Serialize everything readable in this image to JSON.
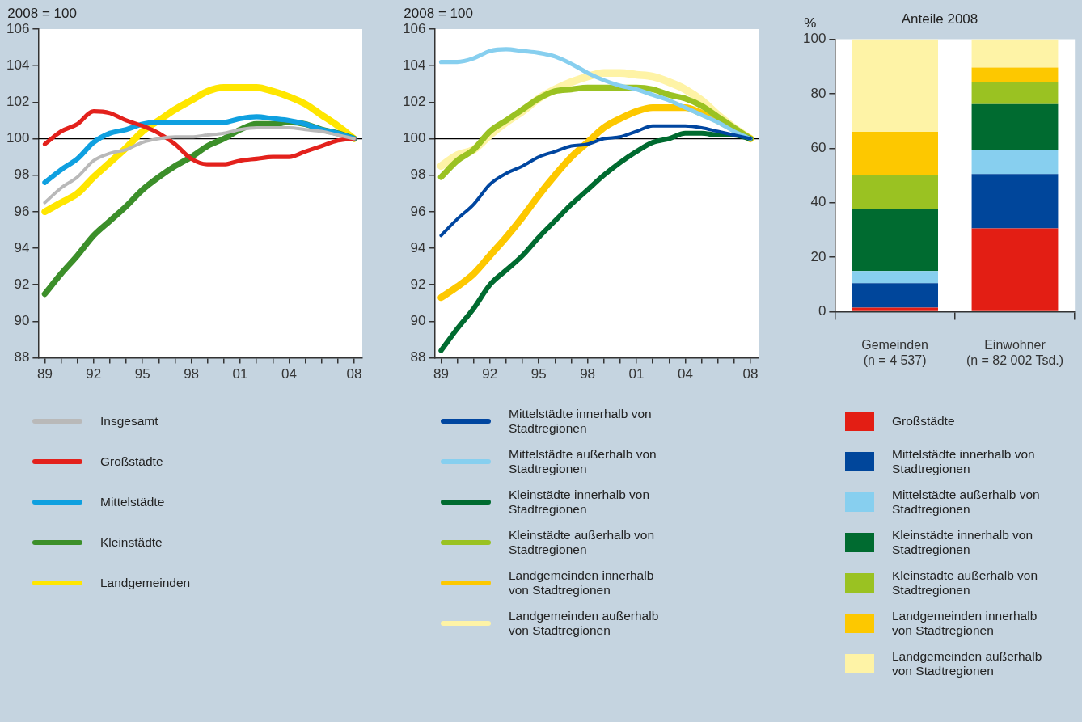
{
  "chart_data": [
    {
      "type": "line",
      "ylabel": "2008 = 100",
      "x": [
        1989,
        1990,
        1991,
        1992,
        1993,
        1994,
        1995,
        1996,
        1997,
        1998,
        1999,
        2000,
        2001,
        2002,
        2003,
        2004,
        2005,
        2006,
        2007,
        2008
      ],
      "xlim": [
        1988.6,
        2008.5
      ],
      "xticks": [
        {
          "value": 1989,
          "label": "89"
        },
        {
          "value": 1990,
          "label": null
        },
        {
          "value": 1991,
          "label": null
        },
        {
          "value": 1992,
          "label": "92"
        },
        {
          "value": 1993,
          "label": null
        },
        {
          "value": 1994,
          "label": null
        },
        {
          "value": 1995,
          "label": "95"
        },
        {
          "value": 1996,
          "label": null
        },
        {
          "value": 1997,
          "label": null
        },
        {
          "value": 1998,
          "label": "98"
        },
        {
          "value": 1999,
          "label": null
        },
        {
          "value": 2000,
          "label": null
        },
        {
          "value": 2001,
          "label": "01"
        },
        {
          "value": 2002,
          "label": null
        },
        {
          "value": 2003,
          "label": null
        },
        {
          "value": 2004,
          "label": "04"
        },
        {
          "value": 2005,
          "label": null
        },
        {
          "value": 2006,
          "label": null
        },
        {
          "value": 2007,
          "label": null
        },
        {
          "value": 2008,
          "label": "08"
        }
      ],
      "ylim": [
        88,
        106
      ],
      "yticks": [
        88,
        90,
        92,
        94,
        96,
        98,
        100,
        102,
        104,
        106
      ],
      "grid": false,
      "legend": "bottom",
      "ref_lines": [
        {
          "axis": "y",
          "value": 100,
          "color": "#000000"
        }
      ],
      "series": [
        {
          "name": "Insgesamt",
          "color": "#b9b9b9",
          "values": [
            96.5,
            97.3,
            97.9,
            98.8,
            99.2,
            99.4,
            99.8,
            100.0,
            100.1,
            100.1,
            100.2,
            100.3,
            100.5,
            100.6,
            100.6,
            100.6,
            100.5,
            100.4,
            100.2,
            100.0
          ]
        },
        {
          "name": "Großstädte",
          "color": "#e3211c",
          "values": [
            99.7,
            100.4,
            100.8,
            101.5,
            101.4,
            101.0,
            100.7,
            100.3,
            99.7,
            98.9,
            98.6,
            98.6,
            98.8,
            98.9,
            99.0,
            99.0,
            99.3,
            99.6,
            99.9,
            100.0
          ]
        },
        {
          "name": "Mittelstädte",
          "color": "#0fa0e0",
          "values": [
            97.6,
            98.3,
            98.9,
            99.8,
            100.3,
            100.5,
            100.8,
            100.9,
            100.9,
            100.9,
            100.9,
            100.9,
            101.1,
            101.2,
            101.1,
            101.0,
            100.8,
            100.5,
            100.3,
            100.0
          ]
        },
        {
          "name": "Kleinstädte",
          "color": "#3c8f2a",
          "values": [
            91.5,
            92.6,
            93.6,
            94.7,
            95.5,
            96.3,
            97.2,
            97.9,
            98.5,
            99.0,
            99.6,
            100.0,
            100.5,
            100.8,
            100.8,
            100.9,
            100.8,
            100.5,
            100.3,
            100.0
          ]
        },
        {
          "name": "Landgemeinden",
          "color": "#ffe600",
          "values": [
            96.0,
            96.5,
            97.0,
            97.9,
            98.7,
            99.5,
            100.4,
            101.0,
            101.6,
            102.1,
            102.6,
            102.8,
            102.8,
            102.8,
            102.6,
            102.3,
            101.9,
            101.3,
            100.7,
            100.0
          ]
        }
      ]
    },
    {
      "type": "line",
      "ylabel": "2008 = 100",
      "x": [
        1989,
        1990,
        1991,
        1992,
        1993,
        1994,
        1995,
        1996,
        1997,
        1998,
        1999,
        2000,
        2001,
        2002,
        2003,
        2004,
        2005,
        2006,
        2007,
        2008
      ],
      "xlim": [
        1988.6,
        2008.5
      ],
      "xticks": [
        {
          "value": 1989,
          "label": "89"
        },
        {
          "value": 1990,
          "label": null
        },
        {
          "value": 1991,
          "label": null
        },
        {
          "value": 1992,
          "label": "92"
        },
        {
          "value": 1993,
          "label": null
        },
        {
          "value": 1994,
          "label": null
        },
        {
          "value": 1995,
          "label": "95"
        },
        {
          "value": 1996,
          "label": null
        },
        {
          "value": 1997,
          "label": null
        },
        {
          "value": 1998,
          "label": "98"
        },
        {
          "value": 1999,
          "label": null
        },
        {
          "value": 2000,
          "label": null
        },
        {
          "value": 2001,
          "label": "01"
        },
        {
          "value": 2002,
          "label": null
        },
        {
          "value": 2003,
          "label": null
        },
        {
          "value": 2004,
          "label": "04"
        },
        {
          "value": 2005,
          "label": null
        },
        {
          "value": 2006,
          "label": null
        },
        {
          "value": 2007,
          "label": null
        },
        {
          "value": 2008,
          "label": "08"
        }
      ],
      "ylim": [
        88,
        106
      ],
      "yticks": [
        88,
        90,
        92,
        94,
        96,
        98,
        100,
        102,
        104,
        106
      ],
      "grid": false,
      "legend": "bottom",
      "ref_lines": [
        {
          "axis": "y",
          "value": 100,
          "color": "#000000"
        }
      ],
      "series": [
        {
          "name": "Mittelstädte innerhalb von Stadtregionen",
          "color": "#0046a0",
          "values": [
            94.7,
            95.6,
            96.4,
            97.5,
            98.1,
            98.5,
            99.0,
            99.3,
            99.6,
            99.7,
            100.0,
            100.1,
            100.4,
            100.7,
            100.7,
            100.7,
            100.6,
            100.4,
            100.2,
            100.0
          ]
        },
        {
          "name": "Mittelstädte außerhalb von Stadtregionen",
          "color": "#87cfef",
          "values": [
            104.2,
            104.2,
            104.4,
            104.8,
            104.9,
            104.8,
            104.7,
            104.5,
            104.1,
            103.6,
            103.2,
            102.9,
            102.7,
            102.4,
            102.1,
            101.7,
            101.3,
            100.9,
            100.4,
            100.0
          ]
        },
        {
          "name": "Kleinstädte innerhalb von Stadtregionen",
          "color": "#006b30",
          "values": [
            88.4,
            89.6,
            90.7,
            92.0,
            92.8,
            93.6,
            94.6,
            95.5,
            96.4,
            97.2,
            98.0,
            98.7,
            99.3,
            99.8,
            100.0,
            100.3,
            100.3,
            100.2,
            100.2,
            100.0
          ]
        },
        {
          "name": "Kleinstädte außerhalb von Stadtregionen",
          "color": "#9ac222",
          "values": [
            97.9,
            98.8,
            99.4,
            100.4,
            101.0,
            101.6,
            102.2,
            102.6,
            102.7,
            102.8,
            102.8,
            102.8,
            102.8,
            102.7,
            102.4,
            102.2,
            101.8,
            101.2,
            100.6,
            100.0
          ]
        },
        {
          "name": "Landgemeinden innerhalb von Stadtregionen",
          "color": "#fdc800",
          "values": [
            91.3,
            91.9,
            92.6,
            93.6,
            94.6,
            95.7,
            96.9,
            98.0,
            99.0,
            99.8,
            100.6,
            101.1,
            101.5,
            101.7,
            101.7,
            101.7,
            101.4,
            101.0,
            100.5,
            100.0
          ]
        },
        {
          "name": "Landgemeinden außerhalb von Stadtregionen",
          "color": "#fef3a6",
          "values": [
            98.5,
            99.1,
            99.4,
            100.2,
            100.9,
            101.5,
            102.2,
            102.7,
            103.1,
            103.4,
            103.6,
            103.6,
            103.5,
            103.4,
            103.1,
            102.7,
            102.1,
            101.3,
            100.6,
            100.0
          ]
        }
      ]
    },
    {
      "type": "bar",
      "stacked": true,
      "title": "Anteile 2008",
      "ylabel": "%",
      "categories": [
        "Gemeinden (n = 4 537)",
        "Einwohner (n = 82 002 Tsd.)"
      ],
      "ylim": [
        0,
        100
      ],
      "yticks": [
        0,
        20,
        40,
        60,
        80,
        100
      ],
      "grid": false,
      "legend": "bottom",
      "series": [
        {
          "name": "Großstädte",
          "color": "#e31e14",
          "values": [
            1.5,
            30.6
          ]
        },
        {
          "name": "Mittelstädte innerhalb von Stadtregionen",
          "color": "#00469b",
          "values": [
            9.0,
            19.9
          ]
        },
        {
          "name": "Mittelstädte außerhalb von Stadtregionen",
          "color": "#87cfef",
          "values": [
            4.4,
            9.0
          ]
        },
        {
          "name": "Kleinstädte innerhalb von Stadtregionen",
          "color": "#006b30",
          "values": [
            22.7,
            16.7
          ]
        },
        {
          "name": "Kleinstädte außerhalb von Stadtregionen",
          "color": "#9ac222",
          "values": [
            12.4,
            8.2
          ]
        },
        {
          "name": "Landgemeinden innerhalb von Stadtregionen",
          "color": "#fdc800",
          "values": [
            16.0,
            5.2
          ]
        },
        {
          "name": "Landgemeinden außerhalb von Stadtregionen",
          "color": "#fef3a6",
          "values": [
            34.0,
            10.4
          ]
        }
      ]
    }
  ]
}
